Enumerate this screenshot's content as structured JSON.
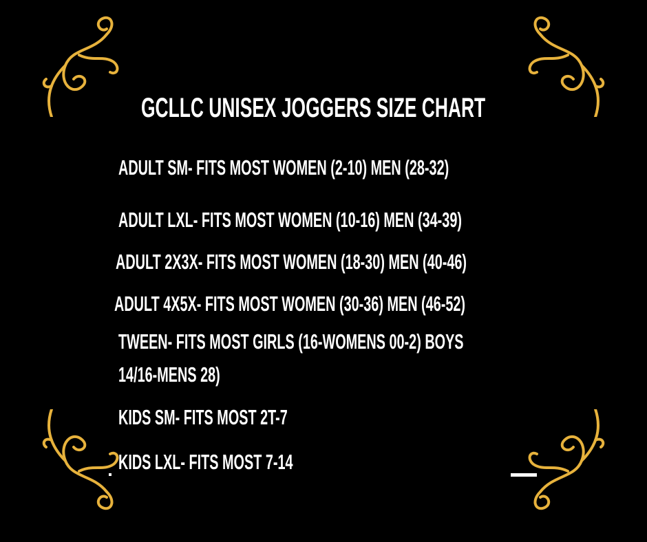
{
  "title": "GCLLC UNISEX JOGGERS SIZE CHART",
  "rows": [
    "ADULT SM- FITS MOST WOMEN (2-10) MEN (28-32)",
    "ADULT LXL- FITS MOST WOMEN (10-16) MEN (34-39)",
    "ADULT 2X3X- FITS MOST WOMEN (18-30) MEN (40-46)",
    "ADULT 4X5X- FITS MOST WOMEN (30-36) MEN (46-52)",
    "TWEEN- FITS MOST GIRLS (16-WOMENS 00-2) BOYS",
    "14/16-MENS 28)",
    "KIDS SM- FITS MOST 2T-7",
    "KIDS LXL- FITS MOST 7-14"
  ],
  "colors": {
    "background": "#000000",
    "text": "#ffffff",
    "ornament": "#e7b23c"
  }
}
